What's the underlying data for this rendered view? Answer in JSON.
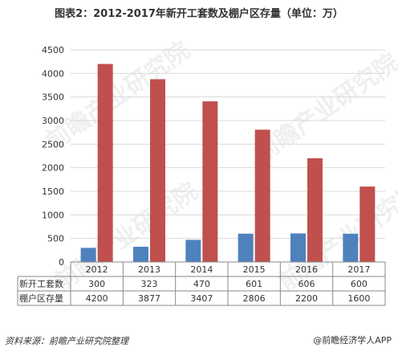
{
  "title": "图表2：2012-2017年新开工套数及棚户区存量（单位：万）",
  "source": "资料来源：前瞻产业研究院整理",
  "credit": "@前瞻经济学人APP",
  "watermark": "前瞻产业研究院",
  "colors": {
    "series1": "#4f81bd",
    "series2": "#c0504d",
    "grid": "#d9d9d9",
    "axis": "#888888"
  },
  "chart_data": {
    "type": "bar",
    "categories": [
      "2012",
      "2013",
      "2014",
      "2015",
      "2016",
      "2017"
    ],
    "series": [
      {
        "name": "新开工套数",
        "values": [
          300,
          323,
          470,
          601,
          606,
          600
        ]
      },
      {
        "name": "棚户区存量",
        "values": [
          4200,
          3877,
          3407,
          2806,
          2200,
          1600
        ]
      }
    ],
    "yticks": [
      "0",
      "500",
      "1000",
      "1500",
      "2000",
      "2500",
      "3000",
      "3500",
      "4000",
      "4500"
    ],
    "ylim": [
      0,
      4500
    ],
    "grid": true,
    "legend": "data-table"
  }
}
